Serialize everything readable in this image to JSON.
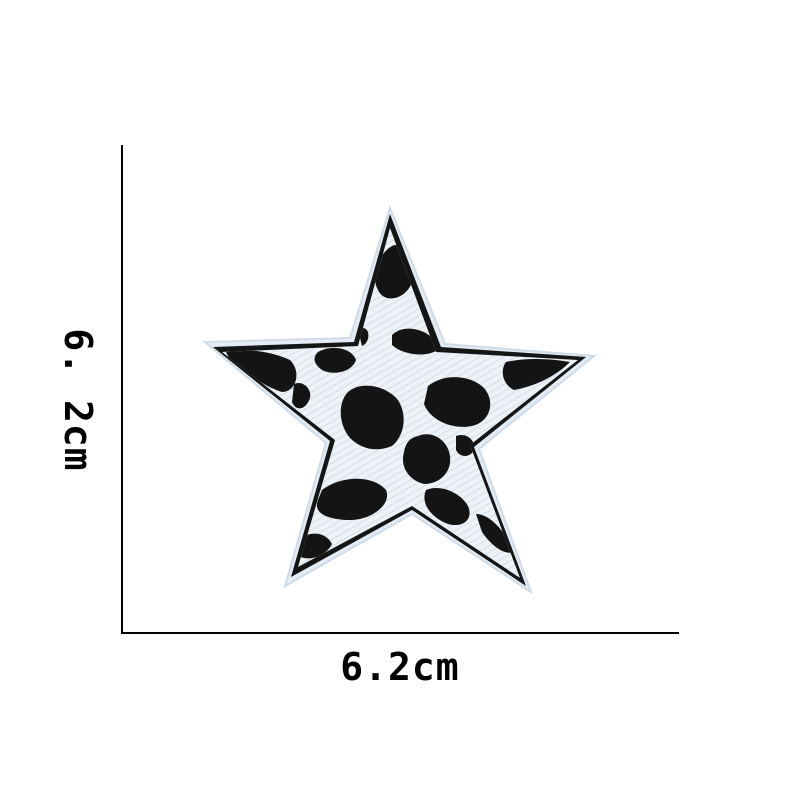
{
  "dimensions": {
    "width_label": "6.2cm",
    "height_label": "6. 2cm"
  },
  "product": {
    "pattern": "cow-print",
    "colors": {
      "fill": "#eef3f8",
      "border": "#1a1a1a",
      "spots": "#141414",
      "backing_edge": "#dfe9f3"
    }
  }
}
